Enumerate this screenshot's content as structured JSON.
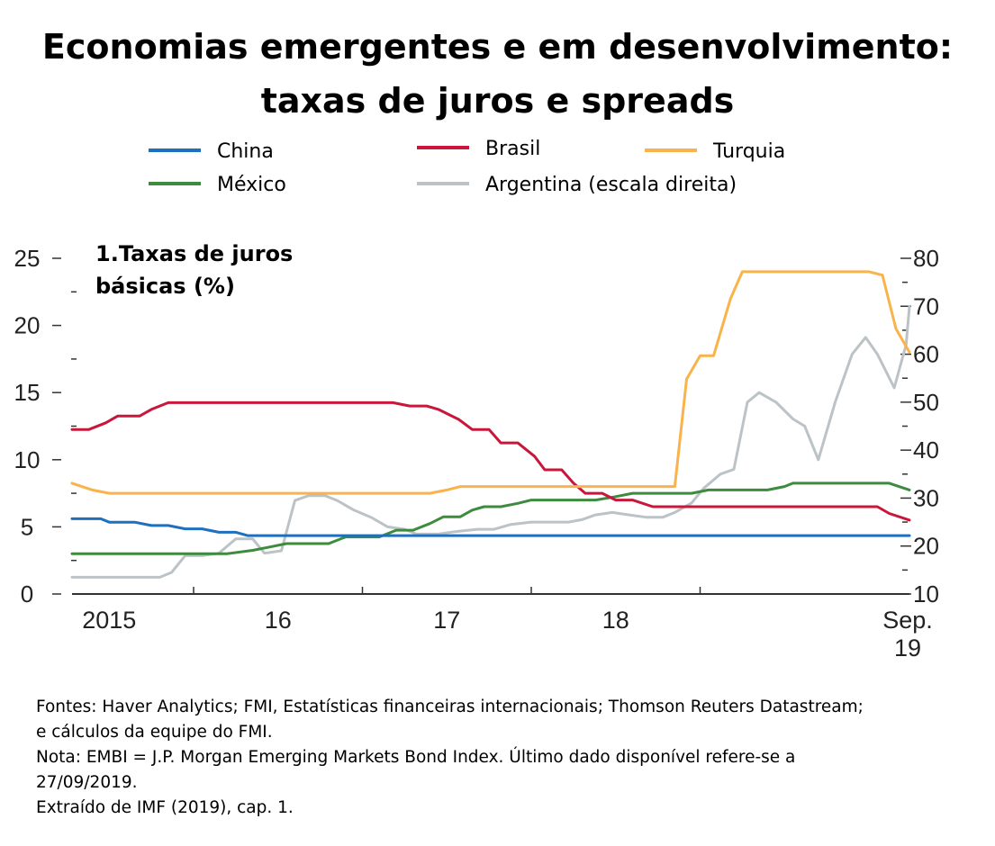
{
  "title_lines": [
    "Economias emergentes e em desenvolvimento:",
    "taxas de juros e spreads"
  ],
  "notes": [
    "Fontes: Haver Analytics; FMI, Estatísticas financeiras internacionais; Thomson Reuters Datastream;",
    "e cálculos da equipe do FMI.",
    "Nota: EMBI = J.P. Morgan Emerging Markets Bond Index. Último dado disponível refere-se a",
    "27/09/2019.",
    "Extraído de IMF (2019), cap. 1."
  ],
  "chart_data": {
    "type": "line",
    "subtitle_lines": [
      "1.Taxas de juros",
      "básicas (%)"
    ],
    "x_range": [
      2014.78,
      2019.74
    ],
    "x_ticks": [
      {
        "label": "2015",
        "value": 2015.0
      },
      {
        "label": "16",
        "value": 2016.0
      },
      {
        "label": "17",
        "value": 2017.0
      },
      {
        "label": "18",
        "value": 2018.0
      },
      {
        "label": "Sep.\n19",
        "value": 2019.74
      }
    ],
    "x_dividers": [
      2015.5,
      2016.5,
      2017.5,
      2018.5
    ],
    "y_left": {
      "range": [
        0,
        25
      ],
      "ticks": [
        0,
        5,
        10,
        15,
        20,
        25
      ],
      "minor": [
        2.5,
        7.5,
        12.5,
        17.5,
        22.5
      ]
    },
    "y_right": {
      "range": [
        10,
        80
      ],
      "ticks": [
        10,
        20,
        30,
        40,
        50,
        60,
        70,
        80
      ],
      "minor": [
        15,
        25,
        35,
        45,
        55,
        65,
        75
      ]
    },
    "legend_position": "top",
    "series": [
      {
        "name": "China",
        "color": "#1f6fbf",
        "axis": "left",
        "points": [
          [
            2014.78,
            5.6
          ],
          [
            2014.95,
            5.6
          ],
          [
            2015.0,
            5.35
          ],
          [
            2015.15,
            5.35
          ],
          [
            2015.25,
            5.1
          ],
          [
            2015.35,
            5.1
          ],
          [
            2015.45,
            4.85
          ],
          [
            2015.55,
            4.85
          ],
          [
            2015.65,
            4.6
          ],
          [
            2015.75,
            4.6
          ],
          [
            2015.82,
            4.35
          ],
          [
            2019.74,
            4.35
          ]
        ]
      },
      {
        "name": "Brasil",
        "color": "#c8173a",
        "axis": "left",
        "points": [
          [
            2014.78,
            12.25
          ],
          [
            2014.88,
            12.25
          ],
          [
            2014.98,
            12.75
          ],
          [
            2015.05,
            13.25
          ],
          [
            2015.18,
            13.25
          ],
          [
            2015.25,
            13.75
          ],
          [
            2015.35,
            14.25
          ],
          [
            2016.68,
            14.25
          ],
          [
            2016.78,
            14.0
          ],
          [
            2016.88,
            14.0
          ],
          [
            2016.95,
            13.75
          ],
          [
            2017.07,
            13.0
          ],
          [
            2017.15,
            12.25
          ],
          [
            2017.25,
            12.25
          ],
          [
            2017.32,
            11.25
          ],
          [
            2017.42,
            11.25
          ],
          [
            2017.52,
            10.25
          ],
          [
            2017.58,
            9.25
          ],
          [
            2017.68,
            9.25
          ],
          [
            2017.75,
            8.25
          ],
          [
            2017.82,
            7.5
          ],
          [
            2017.92,
            7.5
          ],
          [
            2018.0,
            7.0
          ],
          [
            2018.1,
            7.0
          ],
          [
            2018.22,
            6.5
          ],
          [
            2019.55,
            6.5
          ],
          [
            2019.62,
            6.0
          ],
          [
            2019.74,
            5.5
          ]
        ]
      },
      {
        "name": "Turquia",
        "color": "#f9b34a",
        "axis": "left",
        "points": [
          [
            2014.78,
            8.25
          ],
          [
            2014.9,
            7.75
          ],
          [
            2015.0,
            7.5
          ],
          [
            2016.9,
            7.5
          ],
          [
            2017.0,
            7.75
          ],
          [
            2017.08,
            8.0
          ],
          [
            2018.35,
            8.0
          ],
          [
            2018.42,
            16.0
          ],
          [
            2018.5,
            17.75
          ],
          [
            2018.58,
            17.75
          ],
          [
            2018.68,
            22.0
          ],
          [
            2018.75,
            24.0
          ],
          [
            2019.5,
            24.0
          ],
          [
            2019.58,
            23.75
          ],
          [
            2019.66,
            19.75
          ],
          [
            2019.74,
            18.0
          ]
        ]
      },
      {
        "name": "México",
        "color": "#3d8b3d",
        "axis": "left",
        "points": [
          [
            2014.78,
            3.0
          ],
          [
            2015.7,
            3.0
          ],
          [
            2015.85,
            3.25
          ],
          [
            2015.95,
            3.5
          ],
          [
            2016.05,
            3.75
          ],
          [
            2016.3,
            3.75
          ],
          [
            2016.4,
            4.25
          ],
          [
            2016.6,
            4.25
          ],
          [
            2016.7,
            4.75
          ],
          [
            2016.8,
            4.75
          ],
          [
            2016.9,
            5.25
          ],
          [
            2016.98,
            5.75
          ],
          [
            2017.08,
            5.75
          ],
          [
            2017.15,
            6.25
          ],
          [
            2017.22,
            6.5
          ],
          [
            2017.32,
            6.5
          ],
          [
            2017.42,
            6.75
          ],
          [
            2017.5,
            7.0
          ],
          [
            2017.88,
            7.0
          ],
          [
            2018.0,
            7.25
          ],
          [
            2018.1,
            7.5
          ],
          [
            2018.45,
            7.5
          ],
          [
            2018.55,
            7.75
          ],
          [
            2018.9,
            7.75
          ],
          [
            2019.0,
            8.0
          ],
          [
            2019.05,
            8.25
          ],
          [
            2019.62,
            8.25
          ],
          [
            2019.74,
            7.75
          ]
        ]
      },
      {
        "name": "Argentina (escala direita)",
        "color": "#bcc3c7",
        "axis": "right",
        "points": [
          [
            2014.78,
            13.5
          ],
          [
            2015.3,
            13.5
          ],
          [
            2015.37,
            14.5
          ],
          [
            2015.45,
            18.0
          ],
          [
            2015.55,
            18.0
          ],
          [
            2015.65,
            18.5
          ],
          [
            2015.75,
            21.5
          ],
          [
            2015.85,
            21.5
          ],
          [
            2015.92,
            18.5
          ],
          [
            2016.02,
            19.0
          ],
          [
            2016.1,
            29.5
          ],
          [
            2016.18,
            30.5
          ],
          [
            2016.28,
            30.5
          ],
          [
            2016.35,
            29.5
          ],
          [
            2016.45,
            27.5
          ],
          [
            2016.55,
            26.0
          ],
          [
            2016.65,
            24.0
          ],
          [
            2016.75,
            23.5
          ],
          [
            2016.82,
            22.5
          ],
          [
            2016.95,
            22.5
          ],
          [
            2017.05,
            23.0
          ],
          [
            2017.18,
            23.5
          ],
          [
            2017.28,
            23.5
          ],
          [
            2017.38,
            24.5
          ],
          [
            2017.5,
            25.0
          ],
          [
            2017.72,
            25.0
          ],
          [
            2017.8,
            25.5
          ],
          [
            2017.88,
            26.5
          ],
          [
            2017.98,
            27.0
          ],
          [
            2018.08,
            26.5
          ],
          [
            2018.18,
            26.0
          ],
          [
            2018.28,
            26.0
          ],
          [
            2018.35,
            27.0
          ],
          [
            2018.45,
            29.0
          ],
          [
            2018.52,
            32.0
          ],
          [
            2018.62,
            35.0
          ],
          [
            2018.7,
            36.0
          ],
          [
            2018.78,
            50.0
          ],
          [
            2018.85,
            52.0
          ],
          [
            2018.95,
            50.0
          ],
          [
            2019.05,
            46.5
          ],
          [
            2019.12,
            45.0
          ],
          [
            2019.2,
            38.0
          ],
          [
            2019.3,
            50.0
          ],
          [
            2019.4,
            60.0
          ],
          [
            2019.48,
            63.5
          ],
          [
            2019.55,
            60.0
          ],
          [
            2019.65,
            53.0
          ],
          [
            2019.72,
            62.0
          ],
          [
            2019.74,
            70.0
          ]
        ]
      }
    ]
  }
}
